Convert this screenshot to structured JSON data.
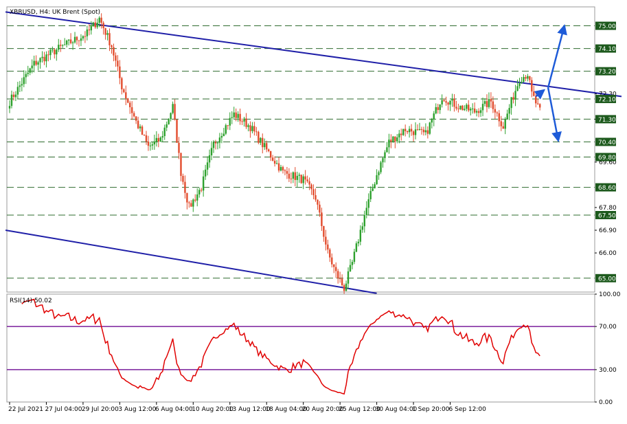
{
  "window": {
    "symbol_info": "XBRUSD, H4:  UK Brent (Spot)",
    "rsi_title": "RSI(14) 50.02"
  },
  "colors": {
    "bull": "#2ca02c",
    "bear": "#e24a2b",
    "trendline": "#1f1fa8",
    "arrow": "#1e5bd8",
    "level_line": "#2e6b2e",
    "level_label_bg": "#1d5a1d",
    "rsi_line": "#e00000",
    "rsi_band": "#7a1f9c",
    "grid_border": "#999999"
  },
  "chart_data": [
    {
      "type": "candlestick",
      "symbol": "XBRUSD",
      "timeframe": "H4",
      "ylim": [
        64.45,
        75.75
      ],
      "y_ticks": [
        "72.30",
        "71.30",
        "69.60",
        "67.80",
        "66.90",
        "66.00"
      ],
      "x_ticks": [
        "22 Jul 2021",
        "27 Jul 04:00",
        "29 Jul 20:00",
        "3 Aug 12:00",
        "6 Aug 04:00",
        "10 Aug 20:00",
        "13 Aug 12:00",
        "18 Aug 04:00",
        "20 Aug 20:00",
        "25 Aug 12:00",
        "30 Aug 04:00",
        "1 Sep 20:00",
        "6 Sep 12:00"
      ],
      "levels": [
        {
          "value": 75.0,
          "label": "75.00"
        },
        {
          "value": 74.1,
          "label": "74.10"
        },
        {
          "value": 73.2,
          "label": "73.20"
        },
        {
          "value": 72.1,
          "label": "72.10"
        },
        {
          "value": 71.3,
          "label": "71.30"
        },
        {
          "value": 70.4,
          "label": "70.40"
        },
        {
          "value": 69.8,
          "label": "69.80"
        },
        {
          "value": 68.6,
          "label": "68.60"
        },
        {
          "value": 67.5,
          "label": "67.50"
        },
        {
          "value": 65.0,
          "label": "65.00"
        }
      ],
      "waypoints": [
        [
          0,
          72.0
        ],
        [
          12,
          73.5
        ],
        [
          24,
          74.1
        ],
        [
          38,
          74.7
        ],
        [
          44,
          75.3
        ],
        [
          50,
          74.2
        ],
        [
          55,
          72.6
        ],
        [
          62,
          71.2
        ],
        [
          68,
          70.2
        ],
        [
          74,
          70.5
        ],
        [
          80,
          71.8
        ],
        [
          84,
          69.2
        ],
        [
          88,
          67.8
        ],
        [
          94,
          68.6
        ],
        [
          100,
          70.3
        ],
        [
          110,
          71.5
        ],
        [
          118,
          71.0
        ],
        [
          124,
          70.3
        ],
        [
          134,
          69.2
        ],
        [
          144,
          68.9
        ],
        [
          150,
          68.2
        ],
        [
          156,
          66.0
        ],
        [
          160,
          65.2
        ],
        [
          164,
          64.6
        ],
        [
          168,
          65.6
        ],
        [
          174,
          67.5
        ],
        [
          180,
          69.1
        ],
        [
          186,
          70.4
        ],
        [
          194,
          70.9
        ],
        [
          204,
          70.7
        ],
        [
          212,
          72.2
        ],
        [
          220,
          71.8
        ],
        [
          228,
          71.6
        ],
        [
          236,
          72.0
        ],
        [
          242,
          71.0
        ],
        [
          246,
          72.0
        ],
        [
          250,
          72.9
        ],
        [
          254,
          73.1
        ],
        [
          256,
          72.3
        ],
        [
          260,
          71.6
        ]
      ],
      "trendlines": [
        {
          "from": [
            -2,
            75.55
          ],
          "to": [
            300,
            72.2
          ]
        },
        {
          "from": [
            -2,
            66.9
          ],
          "to": [
            180,
            64.4
          ]
        }
      ],
      "scenario_arrows": [
        {
          "name": "bounce",
          "from": [
            258,
            72.2
          ],
          "to": [
            262,
            72.45
          ]
        },
        {
          "name": "up",
          "from": [
            264,
            72.55
          ],
          "to": [
            272,
            75.0
          ]
        },
        {
          "name": "down",
          "from": [
            264,
            72.55
          ],
          "to": [
            269,
            70.45
          ]
        }
      ],
      "axis_last_price": "72.10"
    },
    {
      "type": "line",
      "name": "RSI(14)",
      "ylim": [
        0,
        100
      ],
      "y_ticks": [
        "100.00",
        "70.00",
        "30.00",
        "0.00"
      ],
      "bands": [
        70,
        30
      ],
      "current_value": 50.02
    }
  ]
}
